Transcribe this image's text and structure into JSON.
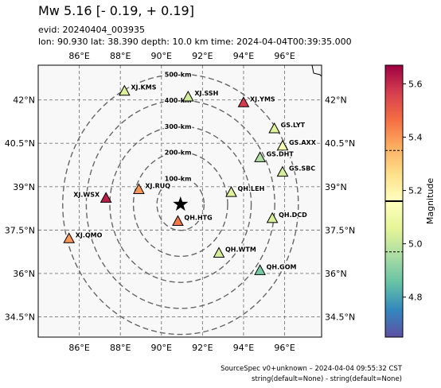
{
  "header": {
    "title": "Mw 5.16 [- 0.19, + 0.19]",
    "evid": "evid: 20240404_003935",
    "info": "lon: 90.930 lat: 38.390 depth: 10.0 km time: 2024-04-04T00:39:35.000"
  },
  "footer": {
    "line1": "SourceSpec v0+unknown – 2024-04-04 09:55:32 CST",
    "line2": "string(default=None) - string(default=None)"
  },
  "chart_data": {
    "type": "scatter",
    "xlim": [
      84.0,
      97.8
    ],
    "ylim": [
      33.8,
      43.2
    ],
    "x_ticks": [
      {
        "v": 86,
        "label": "86°E"
      },
      {
        "v": 88,
        "label": "88°E"
      },
      {
        "v": 90,
        "label": "90°E"
      },
      {
        "v": 92,
        "label": "92°E"
      },
      {
        "v": 94,
        "label": "94°E"
      },
      {
        "v": 96,
        "label": "96°E"
      }
    ],
    "y_ticks": [
      {
        "v": 34.5,
        "label": "34.5°N"
      },
      {
        "v": 36,
        "label": "36°N"
      },
      {
        "v": 37.5,
        "label": "37.5°N"
      },
      {
        "v": 39,
        "label": "39°N"
      },
      {
        "v": 40.5,
        "label": "40.5°N"
      },
      {
        "v": 42,
        "label": "42°N"
      }
    ],
    "grid": true,
    "epicenter": {
      "lon": 90.93,
      "lat": 38.39
    },
    "rings": [
      {
        "label": "100-km",
        "km": 100
      },
      {
        "label": "200-km",
        "km": 200
      },
      {
        "label": "300-km",
        "km": 300
      },
      {
        "label": "400-km",
        "km": 400
      },
      {
        "label": "500-km",
        "km": 500
      }
    ],
    "stations": [
      {
        "name": "XJ.KMS",
        "lon": 88.2,
        "lat": 42.3,
        "mag": 5.04
      },
      {
        "name": "XJ.SSH",
        "lon": 91.3,
        "lat": 42.1,
        "mag": 5.02
      },
      {
        "name": "XJ.YMS",
        "lon": 94.0,
        "lat": 41.9,
        "mag": 5.57
      },
      {
        "name": "GS.LYT",
        "lon": 95.5,
        "lat": 41.0,
        "mag": 5.05
      },
      {
        "name": "GS.AXX",
        "lon": 95.9,
        "lat": 40.4,
        "mag": 5.12
      },
      {
        "name": "GS.DHT",
        "lon": 94.8,
        "lat": 40.0,
        "mag": 4.97
      },
      {
        "name": "GS.SBC",
        "lon": 95.9,
        "lat": 39.5,
        "mag": 5.03
      },
      {
        "name": "QH.LEH",
        "lon": 93.4,
        "lat": 38.8,
        "mag": 5.05
      },
      {
        "name": "XJ.WSX",
        "lon": 87.3,
        "lat": 38.6,
        "mag": 5.62
      },
      {
        "name": "XJ.RUQ",
        "lon": 88.9,
        "lat": 38.9,
        "mag": 5.4
      },
      {
        "name": "QH.HTG",
        "lon": 90.8,
        "lat": 37.8,
        "mag": 5.45
      },
      {
        "name": "QH.DCD",
        "lon": 95.4,
        "lat": 37.9,
        "mag": 5.04
      },
      {
        "name": "XJ.QMO",
        "lon": 85.5,
        "lat": 37.2,
        "mag": 5.4
      },
      {
        "name": "QH.WTM",
        "lon": 92.8,
        "lat": 36.7,
        "mag": 5.03
      },
      {
        "name": "QH.GOM",
        "lon": 94.8,
        "lat": 36.1,
        "mag": 4.88
      }
    ],
    "colorbar": {
      "label": "Magnitude",
      "range": [
        4.65,
        5.67
      ],
      "ticks": [
        4.8,
        5.0,
        5.2,
        5.4,
        5.6
      ],
      "mean": 5.16,
      "lower": 4.97,
      "upper": 5.35
    }
  }
}
